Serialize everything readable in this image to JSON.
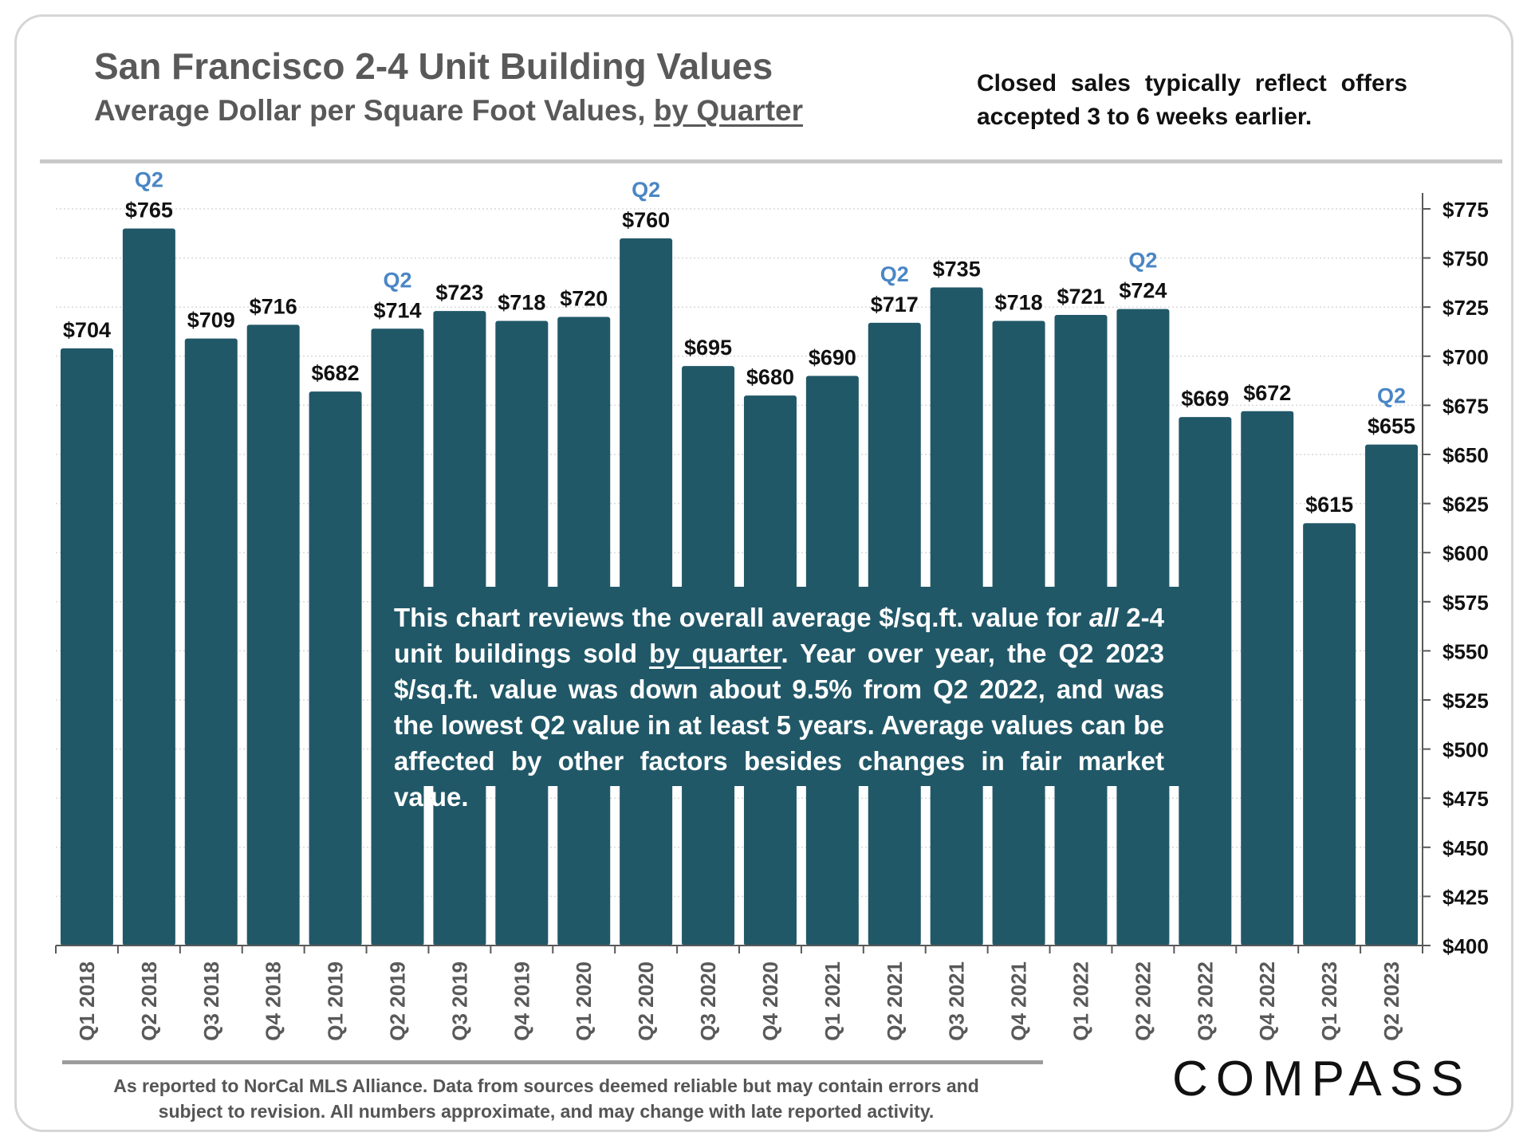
{
  "header": {
    "title": "San Francisco 2-4 Unit Building Values",
    "subtitle_prefix": "Average Dollar per Square Foot Values, ",
    "subtitle_link": "by Quarter",
    "note": "Closed sales typically reflect offers accepted 3 to 6 weeks earlier."
  },
  "callout": {
    "p1": "This chart reviews the overall average $/sq.ft. value for ",
    "p1_italic": "all",
    "p2": " 2-4 unit buildings sold ",
    "p2_underline": "by quarter",
    "p3": ". Year over year, the Q2 2023 $/sq.ft. value was down about 9.5% from Q2 2022, and was the lowest Q2 value in at least 5 years. Average values can be affected by other factors besides changes in fair market value."
  },
  "footer": {
    "line1": "As reported to NorCal MLS Alliance. Data from sources deemed reliable but may contain errors and",
    "line2": "subject to revision. All numbers approximate, and may change with late reported activity.",
    "logo": "COMPASS"
  },
  "colors": {
    "bar": "#215868",
    "q2_label": "#4a86c5",
    "axis": "#595959",
    "grid": "#d9d9d9",
    "text": "#111111"
  },
  "chart_data": {
    "type": "bar",
    "title": "San Francisco 2-4 Unit Building Values",
    "subtitle": "Average Dollar per Square Foot Values, by Quarter",
    "categories": [
      "Q1 2018",
      "Q2 2018",
      "Q3 2018",
      "Q4 2018",
      "Q1 2019",
      "Q2 2019",
      "Q3 2019",
      "Q4 2019",
      "Q1 2020",
      "Q2 2020",
      "Q3 2020",
      "Q4 2020",
      "Q1 2021",
      "Q2 2021",
      "Q3 2021",
      "Q4 2021",
      "Q1 2022",
      "Q2 2022",
      "Q3 2022",
      "Q4 2022",
      "Q1 2023",
      "Q2 2023"
    ],
    "values": [
      704,
      765,
      709,
      716,
      682,
      714,
      723,
      718,
      720,
      760,
      695,
      680,
      690,
      717,
      735,
      718,
      721,
      724,
      669,
      672,
      615,
      655
    ],
    "value_labels": [
      "$704",
      "$765",
      "$709",
      "$716",
      "$682",
      "$714",
      "$723",
      "$718",
      "$720",
      "$760",
      "$695",
      "$680",
      "$690",
      "$717",
      "$735",
      "$718",
      "$721",
      "$724",
      "$669",
      "$672",
      "$615",
      "$655"
    ],
    "highlight_label": "Q2",
    "highlight_indices": [
      1,
      5,
      9,
      13,
      17,
      21
    ],
    "ylim": [
      400,
      775
    ],
    "yticks": [
      400,
      425,
      450,
      475,
      500,
      525,
      550,
      575,
      600,
      625,
      650,
      675,
      700,
      725,
      750,
      775
    ],
    "ytick_labels": [
      "$400",
      "$425",
      "$450",
      "$475",
      "$500",
      "$525",
      "$550",
      "$575",
      "$600",
      "$625",
      "$650",
      "$675",
      "$700",
      "$725",
      "$750",
      "$775"
    ],
    "y_axis_side": "right",
    "grid": true,
    "xlabel": "",
    "ylabel": ""
  }
}
